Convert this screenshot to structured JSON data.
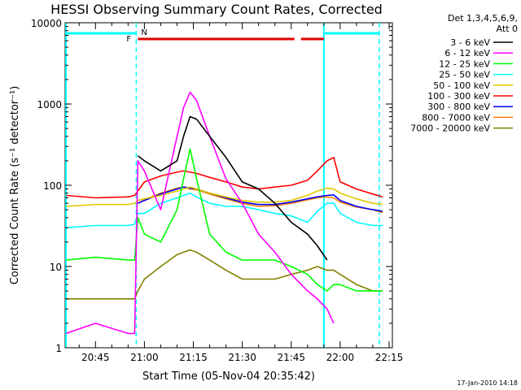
{
  "chart_data": {
    "type": "line",
    "title": "HESSI Observing Summary Count Rates, Corrected",
    "xlabel": "Start Time (05-Nov-04 20:35:42)",
    "ylabel": "Corrected Count Rate (s⁻¹ detector⁻¹)",
    "yscale": "log",
    "ylim": [
      1,
      10000
    ],
    "xlim": [
      "20:35:42",
      "22:16:00"
    ],
    "x_ticks": [
      "20:45",
      "21:00",
      "21:15",
      "21:30",
      "21:45",
      "22:00",
      "22:15"
    ],
    "y_ticks": [
      "1",
      "10",
      "100",
      "1000",
      "10000"
    ],
    "legend_header": [
      "Det 1,3,4,5,6,9,",
      "Att 0"
    ],
    "legend_position": "right",
    "footer": "17-Jan-2010 14:18",
    "flags": {
      "flare_label": "F",
      "night_label": "N",
      "flare_intervals": [
        [
          "20:58",
          "21:46"
        ],
        [
          "21:48",
          "21:55"
        ]
      ],
      "night_interval": [
        "20:35:42",
        "20:57:30"
      ],
      "night_interval_2": [
        "21:55",
        "22:12"
      ],
      "night_line_color": "#00ffff",
      "flare_line_color": "#e00000"
    },
    "x": [
      "20:36",
      "20:45",
      "20:55",
      "20:57",
      "20:58",
      "21:00",
      "21:05",
      "21:10",
      "21:12",
      "21:14",
      "21:16",
      "21:20",
      "21:25",
      "21:30",
      "21:35",
      "21:40",
      "21:45",
      "21:50",
      "21:53",
      "21:56",
      "21:58",
      "22:00",
      "22:05",
      "22:10",
      "22:13"
    ],
    "series": [
      {
        "name": "3 - 6 keV",
        "color": "#000000",
        "values": [
          null,
          null,
          null,
          null,
          230,
          200,
          150,
          200,
          400,
          700,
          650,
          400,
          220,
          110,
          90,
          60,
          35,
          25,
          18,
          12,
          null,
          null,
          null,
          null,
          null
        ]
      },
      {
        "name": "6 - 12 keV",
        "color": "#ff00ff",
        "values": [
          1.5,
          2,
          1.5,
          1.5,
          200,
          150,
          50,
          400,
          900,
          1400,
          1100,
          400,
          120,
          60,
          25,
          15,
          8,
          5,
          4,
          3,
          2,
          null,
          null,
          null,
          null
        ]
      },
      {
        "name": "12 - 25 keV",
        "color": "#00ff00",
        "values": [
          12,
          13,
          12,
          12,
          40,
          25,
          20,
          50,
          120,
          280,
          120,
          25,
          15,
          12,
          12,
          12,
          10,
          8,
          6,
          5,
          6,
          6,
          5,
          5,
          5
        ]
      },
      {
        "name": "25 - 50 keV",
        "color": "#00ffff",
        "values": [
          30,
          32,
          32,
          33,
          45,
          45,
          60,
          70,
          75,
          80,
          72,
          60,
          55,
          55,
          50,
          45,
          42,
          35,
          48,
          60,
          60,
          45,
          35,
          32,
          32
        ]
      },
      {
        "name": "50 - 100 keV",
        "color": "#e0c800",
        "values": [
          55,
          58,
          58,
          60,
          65,
          68,
          75,
          85,
          90,
          95,
          90,
          80,
          72,
          65,
          62,
          62,
          65,
          75,
          85,
          92,
          90,
          80,
          68,
          60,
          58
        ]
      },
      {
        "name": "100 - 300 keV",
        "color": "#ff0000",
        "values": [
          75,
          70,
          72,
          75,
          85,
          110,
          130,
          145,
          150,
          145,
          140,
          125,
          110,
          95,
          90,
          95,
          100,
          115,
          150,
          200,
          220,
          110,
          90,
          78,
          72
        ]
      },
      {
        "name": "300 - 800 keV",
        "color": "#0000ff",
        "values": [
          null,
          null,
          null,
          null,
          60,
          65,
          78,
          90,
          95,
          92,
          90,
          80,
          70,
          62,
          58,
          58,
          62,
          68,
          72,
          75,
          76,
          65,
          55,
          50,
          48
        ]
      },
      {
        "name": "800 - 7000 keV",
        "color": "#ff8000",
        "values": [
          null,
          null,
          null,
          null,
          60,
          66,
          80,
          92,
          95,
          90,
          88,
          78,
          68,
          60,
          55,
          56,
          60,
          66,
          70,
          72,
          70,
          62,
          54,
          50,
          46
        ]
      },
      {
        "name": "7000 - 20000 keV",
        "color": "#808000",
        "values": [
          4,
          4,
          4,
          4,
          5,
          7,
          10,
          14,
          15,
          16,
          15,
          12,
          9,
          7,
          7,
          7,
          8,
          9,
          10,
          9,
          9,
          8,
          6,
          5,
          5
        ]
      }
    ]
  }
}
